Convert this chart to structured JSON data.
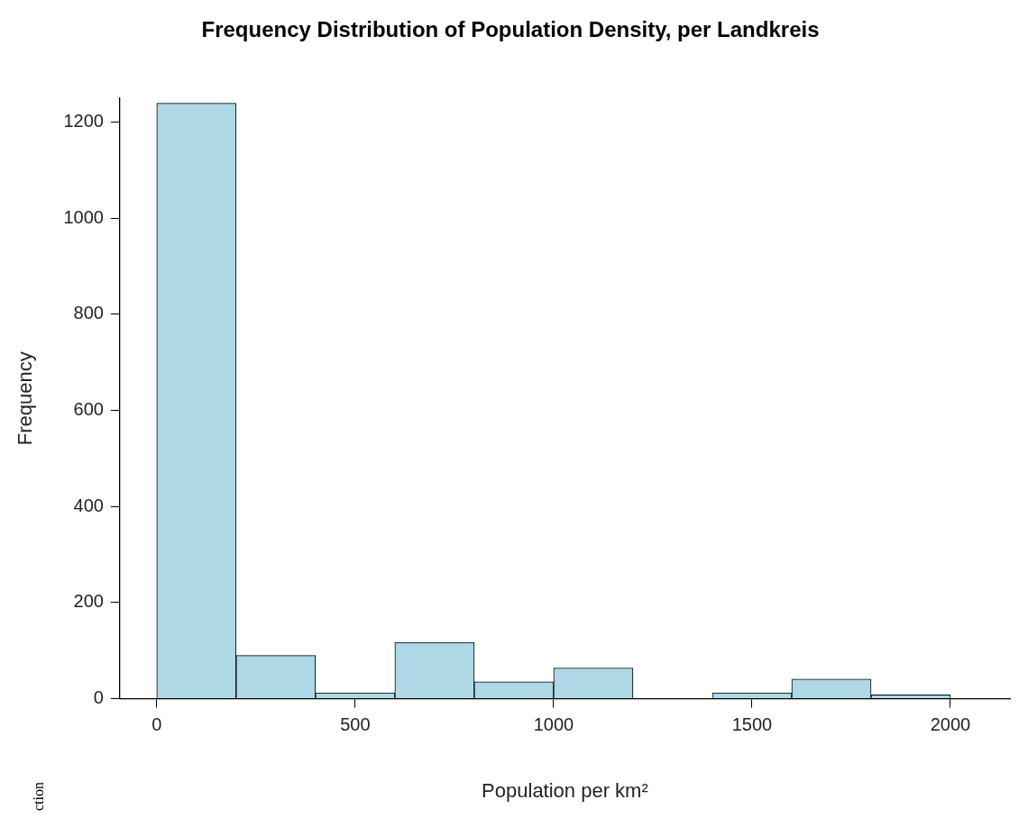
{
  "chart_data": {
    "type": "histogram",
    "title": "Frequency Distribution of Population Density, per Landkreis",
    "xlabel": "Population per km²",
    "ylabel": "Frequency",
    "bins": [
      0,
      200,
      400,
      600,
      800,
      1000,
      1200,
      1400,
      1600,
      1800,
      2000
    ],
    "values": [
      1239,
      90,
      12,
      117,
      35,
      64,
      0,
      12,
      41,
      8
    ],
    "color": "#add8e6",
    "xlim": [
      -93,
      2150
    ],
    "ylim": [
      0,
      1250
    ],
    "xticks": [
      0,
      500,
      1000,
      1500,
      2000
    ],
    "yticks": [
      0,
      200,
      400,
      600,
      800,
      1000,
      1200
    ],
    "grid": false,
    "legend": false,
    "annotations": [
      "ction"
    ]
  }
}
